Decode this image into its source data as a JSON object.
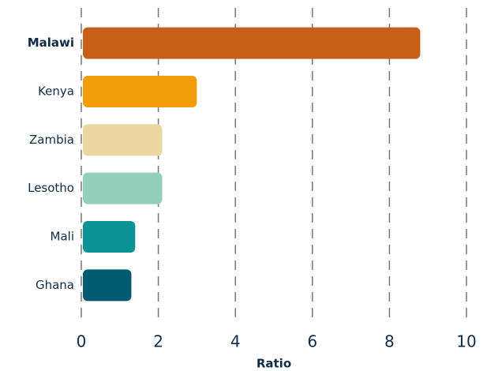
{
  "chart_data": {
    "type": "barh",
    "categories": [
      "Malawi",
      "Kenya",
      "Zambia",
      "Lesotho",
      "Mali",
      "Ghana"
    ],
    "values": [
      8.8,
      3.0,
      2.1,
      2.1,
      1.4,
      1.3
    ],
    "colors": [
      "#c65f17",
      "#f29e0c",
      "#ead6a0",
      "#94cfbb",
      "#0b9294",
      "#005a70"
    ],
    "xlabel": "Ratio",
    "xlim": [
      0,
      10
    ],
    "xticks": [
      0,
      2,
      4,
      6,
      8,
      10
    ],
    "grid": true
  }
}
